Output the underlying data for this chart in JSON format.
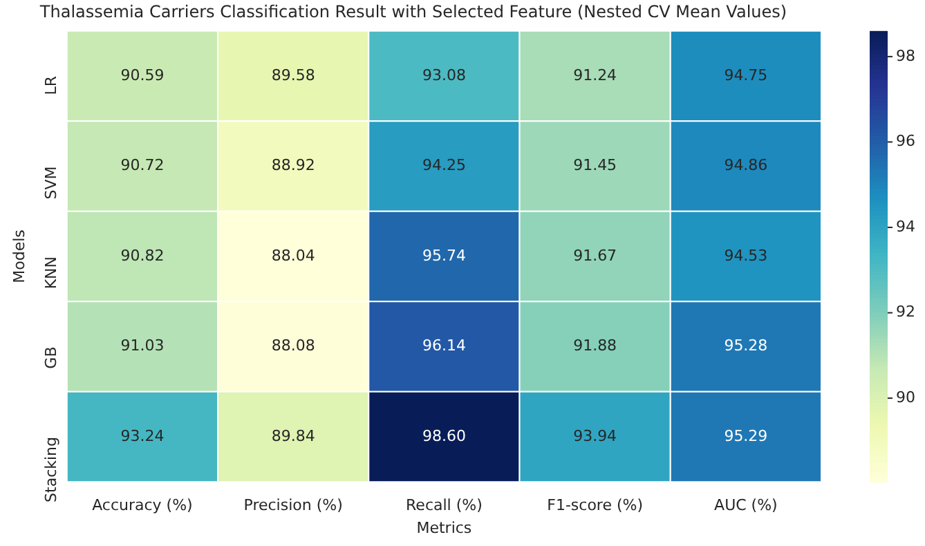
{
  "chart_data": {
    "type": "heatmap",
    "title": "Thalassemia Carriers Classification Result with Selected Feature (Nested CV Mean Values)",
    "xlabel": "Metrics",
    "ylabel": "Models",
    "categories": [
      "Accuracy (%)",
      "Precision (%)",
      "Recall (%)",
      "F1-score (%)",
      "AUC (%)"
    ],
    "y_categories": [
      "LR",
      "SVM",
      "KNN",
      "GB",
      "Stacking"
    ],
    "cells": [
      [
        90.59,
        89.58,
        93.08,
        91.24,
        94.75
      ],
      [
        90.72,
        88.92,
        94.25,
        91.45,
        94.86
      ],
      [
        90.82,
        88.04,
        95.74,
        91.67,
        94.53
      ],
      [
        91.03,
        88.08,
        96.14,
        91.88,
        95.28
      ],
      [
        93.24,
        89.84,
        98.6,
        93.94,
        95.29
      ]
    ],
    "cell_labels": [
      [
        "90.59",
        "89.58",
        "93.08",
        "91.24",
        "94.75"
      ],
      [
        "90.72",
        "88.92",
        "94.25",
        "91.45",
        "94.86"
      ],
      [
        "90.82",
        "88.04",
        "95.74",
        "91.67",
        "94.53"
      ],
      [
        "91.03",
        "88.08",
        "96.14",
        "91.88",
        "95.28"
      ],
      [
        "93.24",
        "89.84",
        "98.60",
        "93.94",
        "95.29"
      ]
    ],
    "data_labels": true,
    "clim": [
      88.04,
      98.6
    ],
    "cticks": [
      90,
      92,
      94,
      96,
      98
    ]
  }
}
